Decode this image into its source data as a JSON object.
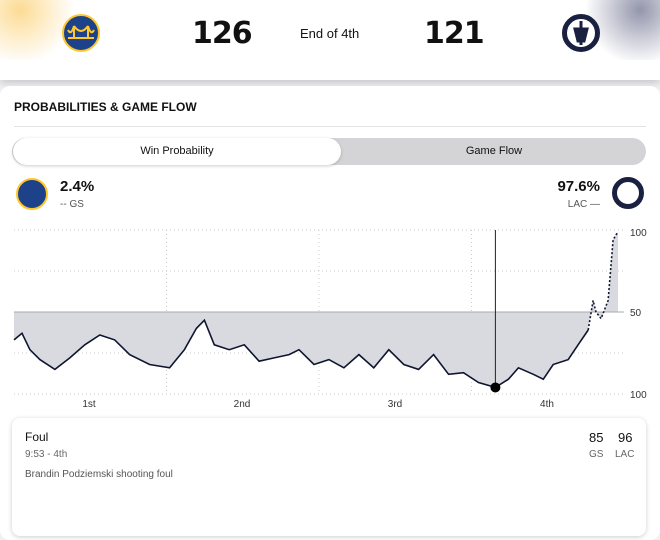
{
  "scoreboard": {
    "home": {
      "abbr": "GS",
      "score": "126"
    },
    "away": {
      "abbr": "LAC",
      "score": "121"
    },
    "status": "End of 4th"
  },
  "section_title": "PROBABILITIES & GAME FLOW",
  "tabs": [
    {
      "label": "Win Probability",
      "active": true
    },
    {
      "label": "Game Flow",
      "active": false
    }
  ],
  "win_prob": {
    "gs": {
      "pct": "2.4%",
      "legend": "-- GS"
    },
    "lac": {
      "pct": "97.6%",
      "legend": "LAC —"
    }
  },
  "colors": {
    "line": "#0e1530",
    "fill": "#d9dadf",
    "fill_lac": "#dde3f0",
    "gs_blue": "#1d428a",
    "gs_gold": "#ffc72c",
    "lac_navy": "#1a2140"
  },
  "chart_data": {
    "type": "line",
    "title": "Win Probability",
    "xlabel": "",
    "ylabel": "",
    "x_unit": "game minutes",
    "xlim": [
      0,
      48
    ],
    "ylim": [
      0,
      100
    ],
    "y_tick_labels": [
      "100",
      "50",
      "100"
    ],
    "quarter_labels": [
      "1st",
      "2nd",
      "3rd",
      "4th"
    ],
    "x": [
      0,
      0.63,
      1.25,
      2.04,
      3.22,
      4.39,
      5.57,
      6.75,
      7.92,
      9.1,
      10.67,
      12.24,
      13.41,
      14.35,
      14.98,
      15.76,
      16.94,
      18.12,
      19.29,
      20.47,
      21.65,
      22.43,
      23.61,
      24.78,
      25.96,
      27.14,
      28.31,
      29.49,
      30.67,
      31.84,
      33.02,
      34.2,
      35.37,
      36.55,
      37.88,
      38.9,
      39.69,
      40.86,
      41.65,
      42.43,
      43.61,
      44.39,
      45.18,
      45.57,
      45.8,
      46.2,
      46.75,
      47.14,
      47.53
    ],
    "values": [
      33,
      37,
      27,
      21,
      15,
      22,
      30,
      36,
      33,
      24,
      18,
      16,
      27,
      40,
      45,
      30,
      27,
      30,
      20,
      22,
      24,
      27,
      18,
      21,
      16,
      24,
      16,
      27,
      18,
      15,
      24,
      12,
      13,
      7,
      4,
      9,
      16,
      12,
      9,
      18,
      21,
      30,
      39,
      57,
      50,
      46,
      57,
      94,
      99
    ],
    "dashed_from_index": 42,
    "selected_x": 37.88
  },
  "play": {
    "type": "Foul",
    "time": "9:53 - 4th",
    "description": "Brandin Podziemski shooting foul",
    "gs_score": "85",
    "lac_score": "96",
    "gs_label": "GS",
    "lac_label": "LAC"
  }
}
